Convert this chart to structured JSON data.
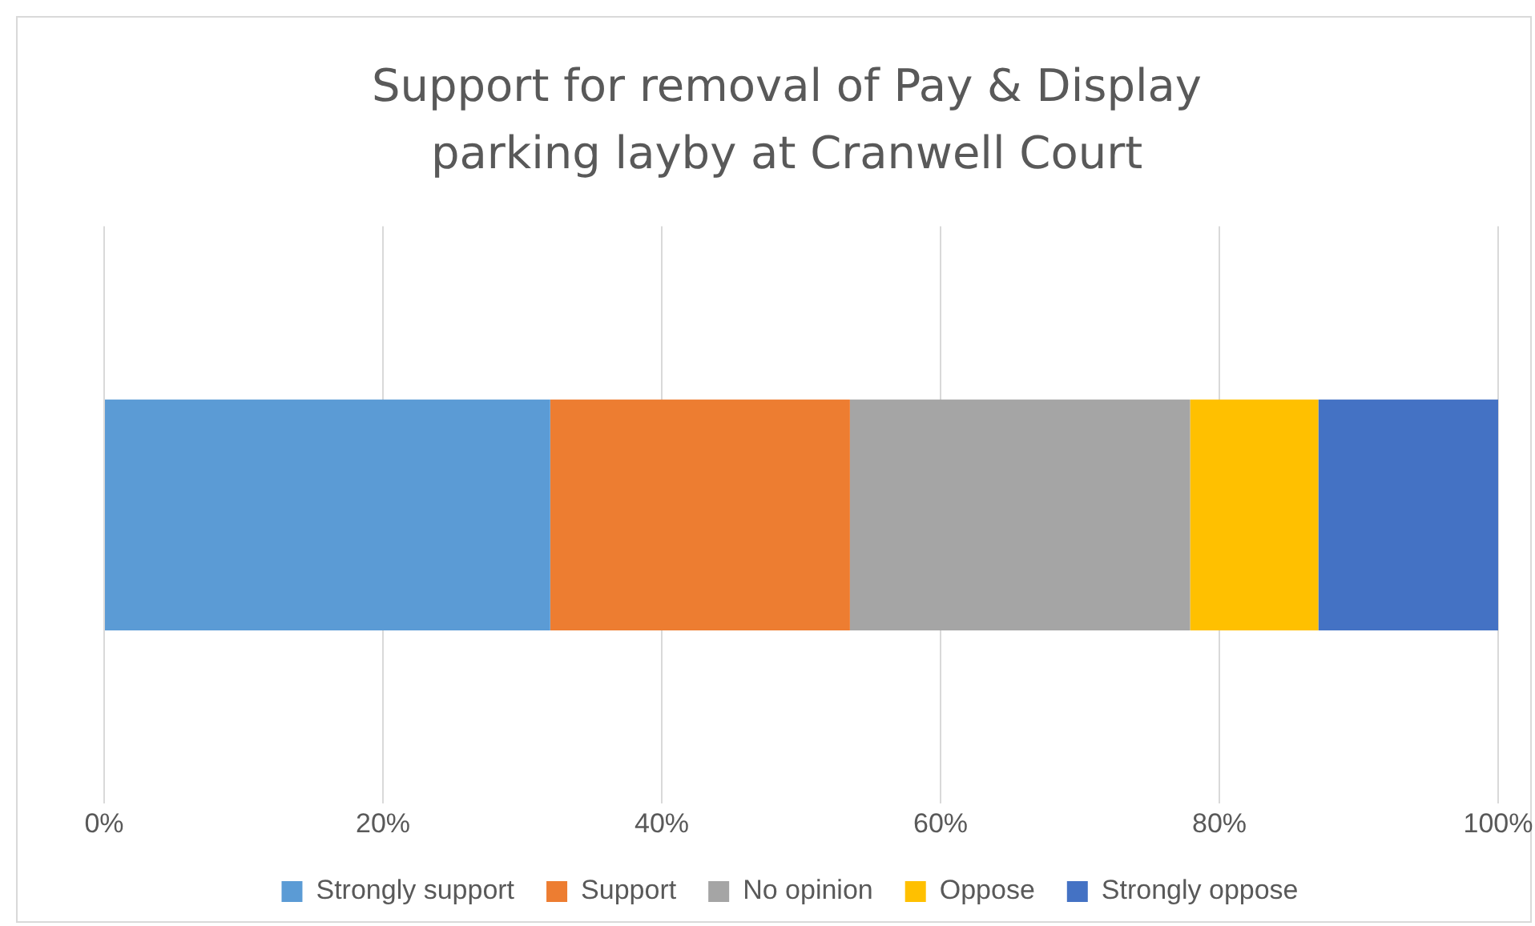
{
  "chart_data": {
    "type": "bar",
    "orientation": "horizontal",
    "stacked": true,
    "title": "Support for removal of Pay & Display parking layby at Cranwell Court",
    "categories": [
      null
    ],
    "series": [
      {
        "name": "Strongly support",
        "color": "#5b9bd5",
        "values": [
          32.0
        ]
      },
      {
        "name": "Support",
        "color": "#ed7d31",
        "values": [
          21.5
        ]
      },
      {
        "name": "No opinion",
        "color": "#a5a5a5",
        "values": [
          24.4
        ]
      },
      {
        "name": "Oppose",
        "color": "#ffc000",
        "values": [
          9.2
        ]
      },
      {
        "name": "Strongly oppose",
        "color": "#4472c4",
        "values": [
          12.9
        ]
      }
    ],
    "xlim": [
      0,
      100
    ],
    "xticks": [
      {
        "value": 0,
        "label": "0%"
      },
      {
        "value": 20,
        "label": "20%"
      },
      {
        "value": 40,
        "label": "40%"
      },
      {
        "value": 60,
        "label": "60%"
      },
      {
        "value": 80,
        "label": "80%"
      },
      {
        "value": 100,
        "label": "100%"
      }
    ],
    "grid": "x",
    "legend": "bottom"
  }
}
